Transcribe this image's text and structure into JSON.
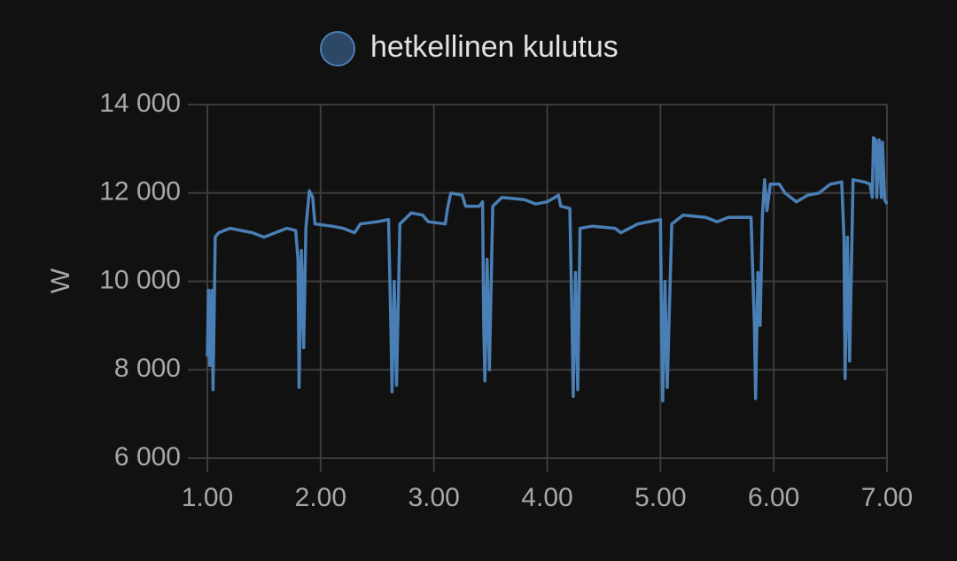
{
  "chart_data": {
    "type": "line",
    "ylabel": "W",
    "x": [
      1.0,
      1.01,
      1.02,
      1.04,
      1.05,
      1.07,
      1.1,
      1.2,
      1.4,
      1.5,
      1.6,
      1.7,
      1.78,
      1.8,
      1.81,
      1.83,
      1.85,
      1.87,
      1.9,
      1.93,
      1.95,
      2.1,
      2.2,
      2.3,
      2.35,
      2.5,
      2.6,
      2.62,
      2.63,
      2.65,
      2.67,
      2.7,
      2.8,
      2.9,
      2.95,
      3.1,
      3.12,
      3.15,
      3.25,
      3.28,
      3.4,
      3.43,
      3.44,
      3.45,
      3.47,
      3.49,
      3.52,
      3.6,
      3.8,
      3.9,
      4.0,
      4.1,
      4.12,
      4.2,
      4.22,
      4.23,
      4.25,
      4.27,
      4.29,
      4.4,
      4.6,
      4.65,
      4.8,
      5.0,
      5.01,
      5.02,
      5.04,
      5.06,
      5.1,
      5.2,
      5.4,
      5.5,
      5.6,
      5.8,
      5.83,
      5.84,
      5.86,
      5.88,
      5.9,
      5.92,
      5.94,
      5.97,
      6.05,
      6.1,
      6.2,
      6.3,
      6.4,
      6.5,
      6.6,
      6.62,
      6.63,
      6.65,
      6.67,
      6.7,
      6.8,
      6.85,
      6.87,
      6.88,
      6.9,
      6.91,
      6.93,
      6.95,
      6.96,
      6.98,
      7.0
    ],
    "series": [
      {
        "name": "hetkellinen kulutus",
        "color": "#4a7fb5",
        "values": [
          8300,
          9800,
          8100,
          9800,
          7550,
          11000,
          11100,
          11200,
          11100,
          11000,
          11100,
          11200,
          11150,
          10500,
          7600,
          10700,
          8500,
          11200,
          12050,
          11900,
          11300,
          11250,
          11200,
          11100,
          11300,
          11350,
          11400,
          9000,
          7500,
          10000,
          7650,
          11300,
          11550,
          11500,
          11350,
          11300,
          11650,
          12000,
          11950,
          11700,
          11700,
          11800,
          9000,
          7750,
          10500,
          8000,
          11700,
          11900,
          11850,
          11750,
          11800,
          11950,
          11700,
          11650,
          9000,
          7400,
          10200,
          7550,
          11200,
          11250,
          11200,
          11100,
          11300,
          11400,
          9000,
          7300,
          10000,
          7600,
          11300,
          11500,
          11450,
          11350,
          11450,
          11450,
          9000,
          7350,
          10200,
          9000,
          11500,
          12300,
          11600,
          12200,
          12200,
          12000,
          11800,
          11950,
          12000,
          12200,
          12250,
          11000,
          7800,
          11000,
          8200,
          12300,
          12250,
          12200,
          11900,
          13250,
          13200,
          11900,
          13200,
          11900,
          13150,
          11850,
          11750
        ]
      }
    ],
    "xlim": [
      1,
      7
    ],
    "xticks": [
      {
        "value": 1,
        "label": "1.00"
      },
      {
        "value": 2,
        "label": "2.00"
      },
      {
        "value": 3,
        "label": "3.00"
      },
      {
        "value": 4,
        "label": "4.00"
      },
      {
        "value": 5,
        "label": "5.00"
      },
      {
        "value": 6,
        "label": "6.00"
      },
      {
        "value": 7,
        "label": "7.00"
      }
    ],
    "ylim": [
      6000,
      14000
    ],
    "yticks": [
      {
        "value": 6000,
        "label": "6 000"
      },
      {
        "value": 8000,
        "label": "8 000"
      },
      {
        "value": 10000,
        "label": "10 000"
      },
      {
        "value": 12000,
        "label": "12 000"
      },
      {
        "value": 14000,
        "label": "14 000"
      }
    ],
    "grid": true
  }
}
